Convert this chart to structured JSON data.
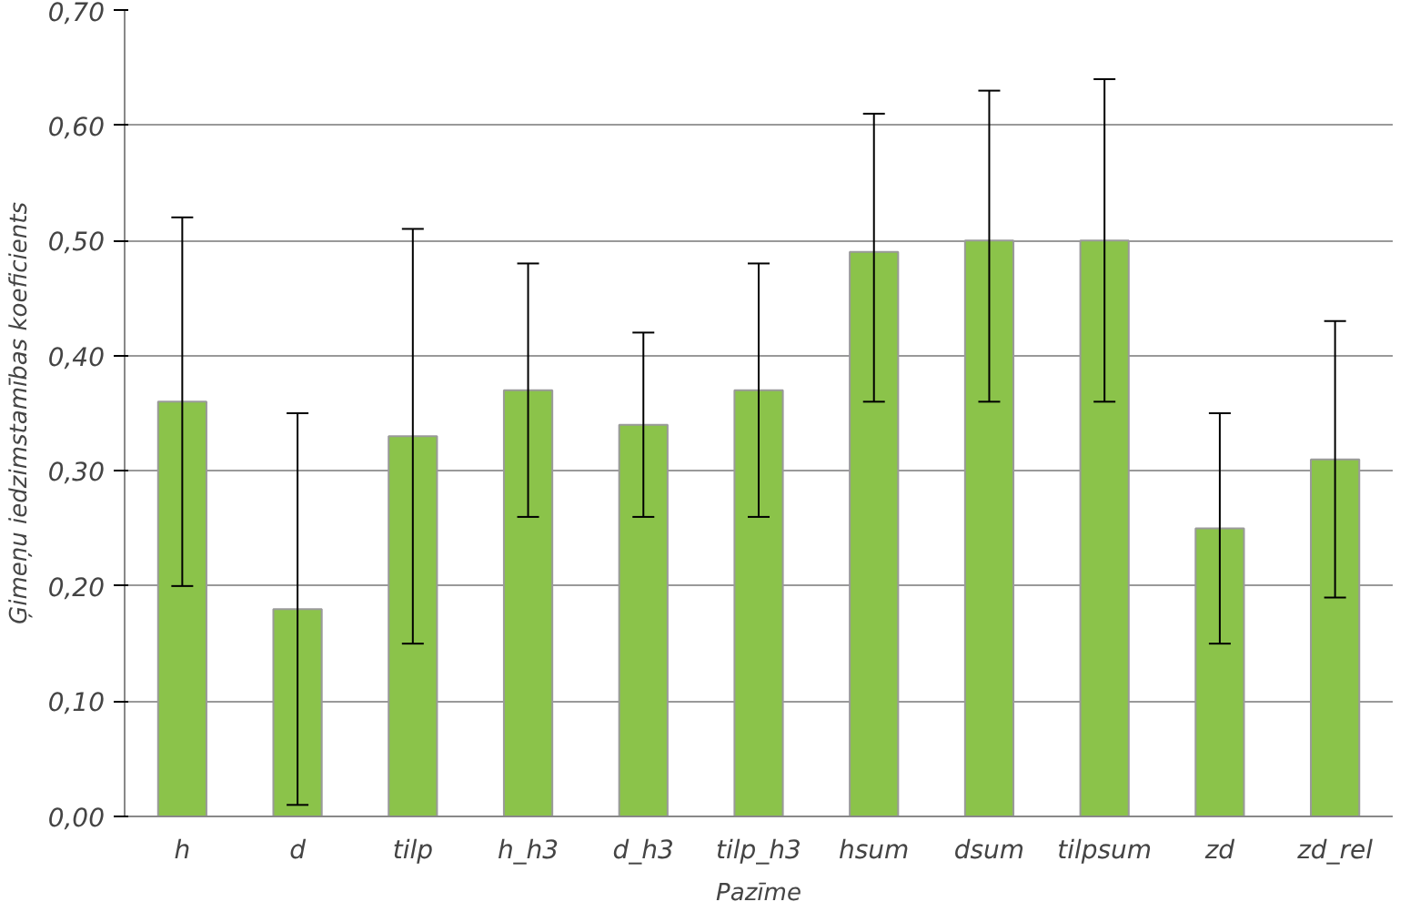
{
  "chart_data": {
    "type": "bar",
    "xlabel": "Pazīme",
    "ylabel": "Ģimeņu iedzimstamības koeficients",
    "categories": [
      "h",
      "d",
      "tilp",
      "h_h3",
      "d_h3",
      "tilp_h3",
      "hsum",
      "dsum",
      "tilpsum",
      "zd",
      "zd_rel"
    ],
    "values": [
      0.36,
      0.18,
      0.33,
      0.37,
      0.34,
      0.37,
      0.49,
      0.5,
      0.5,
      0.25,
      0.31
    ],
    "errors": [
      [
        0.2,
        0.52
      ],
      [
        0.01,
        0.35
      ],
      [
        0.15,
        0.51
      ],
      [
        0.26,
        0.48
      ],
      [
        0.26,
        0.42
      ],
      [
        0.26,
        0.48
      ],
      [
        0.36,
        0.61
      ],
      [
        0.36,
        0.63
      ],
      [
        0.36,
        0.64
      ],
      [
        0.15,
        0.35
      ],
      [
        0.19,
        0.43
      ]
    ],
    "color": "#8bc34a",
    "ylim": [
      0,
      0.7
    ],
    "yticks": [
      {
        "value": 0,
        "label": "0,00"
      },
      {
        "value": 0.1,
        "label": "0,10"
      },
      {
        "value": 0.2,
        "label": "0,20"
      },
      {
        "value": 0.3,
        "label": "0,30"
      },
      {
        "value": 0.4,
        "label": "0,40"
      },
      {
        "value": 0.5,
        "label": "0,50"
      },
      {
        "value": 0.6,
        "label": "0,60"
      },
      {
        "value": 0.7,
        "label": "0,70"
      }
    ],
    "grid": "y"
  }
}
